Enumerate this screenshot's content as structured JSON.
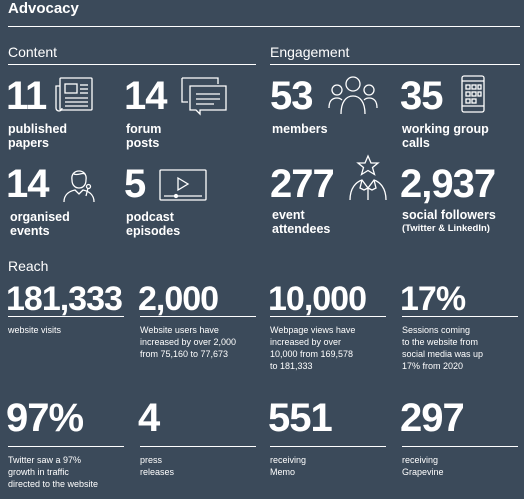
{
  "title": "Advocacy",
  "content": {
    "heading": "Content",
    "stats": [
      {
        "value": "11",
        "label1": "published",
        "label2": "papers",
        "icon": "newspaper-icon"
      },
      {
        "value": "14",
        "label1": "forum",
        "label2": "posts",
        "icon": "chat-bubbles-icon"
      },
      {
        "value": "14",
        "label1": "organised",
        "label2": "events",
        "icon": "speaker-icon"
      },
      {
        "value": "5",
        "label1": "podcast",
        "label2": "episodes",
        "icon": "video-player-icon"
      }
    ]
  },
  "engagement": {
    "heading": "Engagement",
    "stats": [
      {
        "value": "53",
        "label1": "members",
        "icon": "people-group-icon"
      },
      {
        "value": "35",
        "label1": "working group",
        "label2": "calls",
        "icon": "phone-icon"
      },
      {
        "value": "277",
        "label1": "event",
        "label2": "attendees",
        "icon": "star-person-icon"
      },
      {
        "value": "2,937",
        "label1": "social followers",
        "sub": "(Twitter & LinkedIn)"
      }
    ]
  },
  "reach": {
    "heading": "Reach",
    "row1": [
      {
        "value": "181,333",
        "desc": [
          "website visits"
        ]
      },
      {
        "value": "2,000",
        "desc": [
          "Website users have",
          "increased by over 2,000",
          "from 75,160 to 77,673"
        ]
      },
      {
        "value": "10,000",
        "desc": [
          "Webpage views have",
          "increased by over",
          "10,000 from 169,578",
          "to 181,333"
        ]
      },
      {
        "value": "17%",
        "desc": [
          "Sessions coming",
          "to the website from",
          "social media was up",
          "17% from 2020"
        ]
      }
    ],
    "row2": [
      {
        "value": "97%",
        "desc": [
          "Twitter saw a 97%",
          "growth in traffic",
          "directed to the website"
        ]
      },
      {
        "value": "4",
        "desc": [
          "press",
          "releases"
        ]
      },
      {
        "value": "551",
        "desc": [
          "receiving",
          "Memo"
        ]
      },
      {
        "value": "297",
        "desc": [
          "receiving",
          "Grapevine"
        ]
      }
    ]
  }
}
